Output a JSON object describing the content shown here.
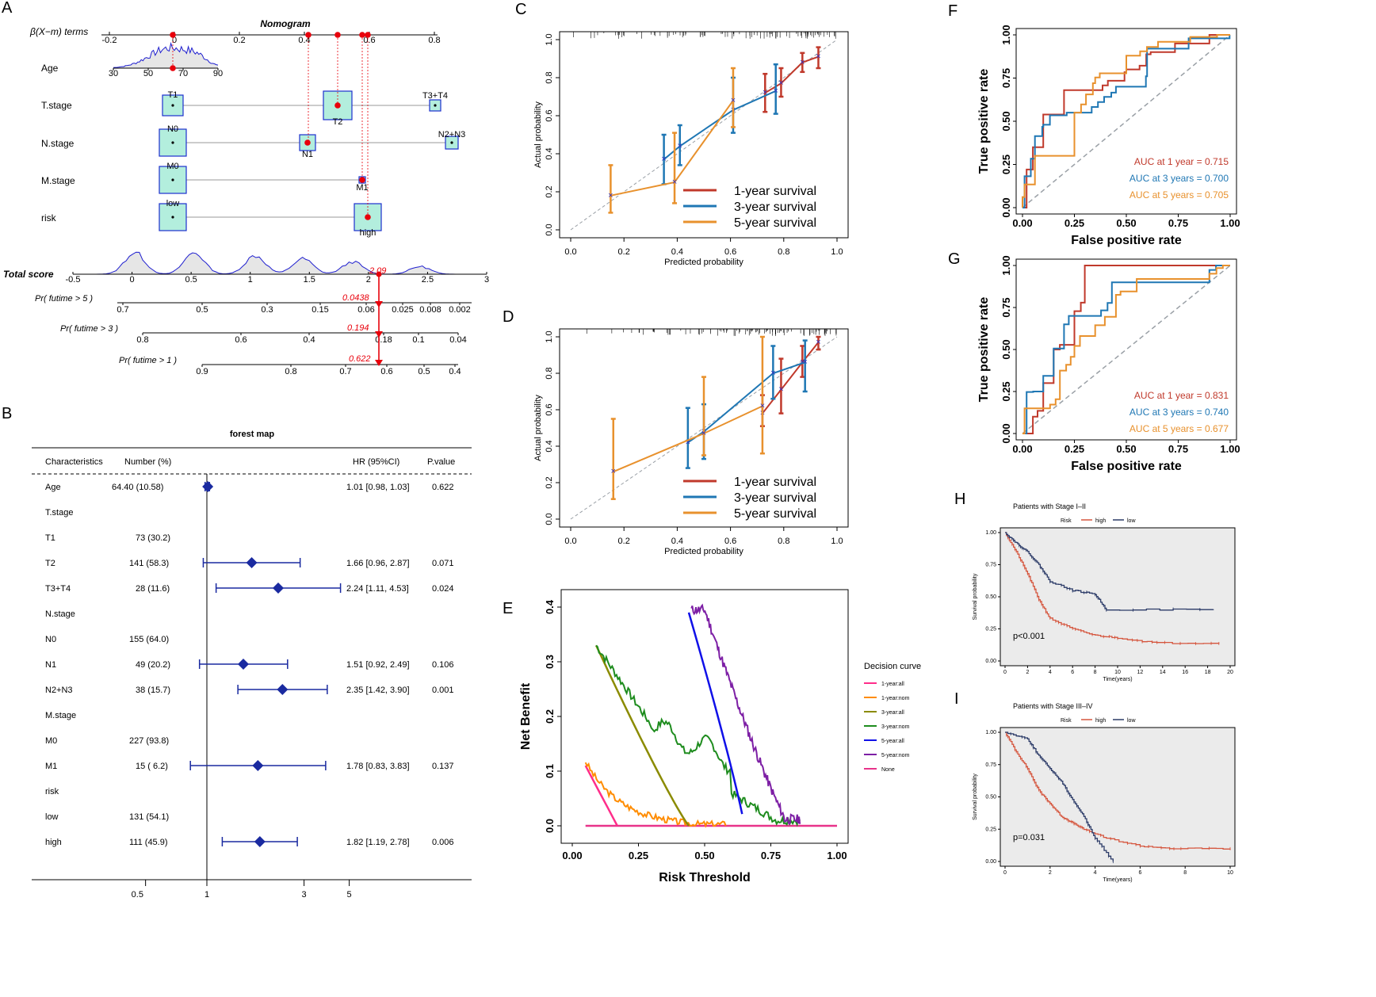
{
  "panels": {
    "A": "A",
    "B": "B",
    "C": "C",
    "D": "D",
    "E": "E",
    "F": "F",
    "G": "G",
    "H": "H",
    "I": "I"
  },
  "colors": {
    "red": "#c0392b",
    "blue": "#1f77b4",
    "orange": "#e8912d",
    "nomoRed": "#e8000b",
    "navy": "#1c2e6e",
    "forestBlue": "#1a2aa0",
    "kmRed": "#d5553d",
    "kmBlue": "#2b3a67"
  },
  "chart_data": [
    {
      "type": "table",
      "id": "nomogram",
      "title": "Nomogram",
      "rows": [
        {
          "label": "β(X−m) terms",
          "ticks": [
            "-0.2",
            "0",
            "0.2",
            "0.4",
            "0.6",
            "0.8"
          ]
        },
        {
          "label": "Age",
          "ticks": [
            "30",
            "50",
            "70",
            "90"
          ]
        },
        {
          "label": "T.stage",
          "levels": [
            "T1",
            "T2",
            "T3+T4"
          ]
        },
        {
          "label": "N.stage",
          "levels": [
            "N0",
            "N1",
            "N2+N3"
          ]
        },
        {
          "label": "M.stage",
          "levels": [
            "M0",
            "M1"
          ]
        },
        {
          "label": "risk",
          "levels": [
            "low",
            "high"
          ]
        },
        {
          "label": "Total score",
          "ticks": [
            "-0.5",
            "0",
            "0.5",
            "1",
            "1.5",
            "2",
            "2.5",
            "3"
          ],
          "value": "2.09"
        },
        {
          "label": "Pr( futime > 5 )",
          "ticks": [
            "0.7",
            "0.5",
            "0.3",
            "0.15",
            "0.06",
            "0.025",
            "0.008",
            "0.002"
          ],
          "value": "0.0438"
        },
        {
          "label": "Pr( futime > 3 )",
          "ticks": [
            "0.8",
            "0.6",
            "0.4",
            "0.18",
            "0.1",
            "0.04"
          ],
          "value": "0.194"
        },
        {
          "label": "Pr( futime > 1 )",
          "ticks": [
            "0.9",
            "0.8",
            "0.7",
            "0.6",
            "0.5",
            "0.4"
          ],
          "value": "0.622"
        }
      ]
    },
    {
      "type": "table",
      "id": "forest",
      "title": "forest map",
      "columns": [
        "Characteristics",
        "Number (%)",
        "HR (95%CI)",
        "P.value"
      ],
      "rows": [
        {
          "name": "Age",
          "num": "64.40 (10.58)",
          "hr": "1.01 [0.98, 1.03]",
          "p": "0.622",
          "est": 1.01,
          "lo": 0.98,
          "hi": 1.03
        },
        {
          "name": "T.stage",
          "num": "",
          "hr": "",
          "p": ""
        },
        {
          "name": "T1",
          "num": "73 (30.2)",
          "hr": "",
          "p": ""
        },
        {
          "name": "T2",
          "num": "141 (58.3)",
          "hr": "1.66 [0.96, 2.87]",
          "p": "0.071",
          "est": 1.66,
          "lo": 0.96,
          "hi": 2.87
        },
        {
          "name": "T3+T4",
          "num": "28 (11.6)",
          "hr": "2.24 [1.11, 4.53]",
          "p": "0.024",
          "est": 2.24,
          "lo": 1.11,
          "hi": 4.53
        },
        {
          "name": "N.stage",
          "num": "",
          "hr": "",
          "p": ""
        },
        {
          "name": "N0",
          "num": "155 (64.0)",
          "hr": "",
          "p": ""
        },
        {
          "name": "N1",
          "num": "49 (20.2)",
          "hr": "1.51 [0.92, 2.49]",
          "p": "0.106",
          "est": 1.51,
          "lo": 0.92,
          "hi": 2.49
        },
        {
          "name": "N2+N3",
          "num": "38 (15.7)",
          "hr": "2.35 [1.42, 3.90]",
          "p": "0.001",
          "est": 2.35,
          "lo": 1.42,
          "hi": 3.9
        },
        {
          "name": "M.stage",
          "num": "",
          "hr": "",
          "p": ""
        },
        {
          "name": "M0",
          "num": "227 (93.8)",
          "hr": "",
          "p": ""
        },
        {
          "name": "M1",
          "num": "15 ( 6.2)",
          "hr": "1.78 [0.83, 3.83]",
          "p": "0.137",
          "est": 1.78,
          "lo": 0.83,
          "hi": 3.83
        },
        {
          "name": "risk",
          "num": "",
          "hr": "",
          "p": ""
        },
        {
          "name": "low",
          "num": "131 (54.1)",
          "hr": "",
          "p": ""
        },
        {
          "name": "high",
          "num": "111 (45.9)",
          "hr": "1.82 [1.19, 2.78]",
          "p": "0.006",
          "est": 1.82,
          "lo": 1.19,
          "hi": 2.78
        }
      ],
      "xticks": [
        "0.5",
        "1",
        "3",
        "5"
      ]
    },
    {
      "type": "line",
      "id": "calC",
      "xlabel": "Predicted probability",
      "ylabel": "Actual probability",
      "xticks": [
        "0.0",
        "0.2",
        "0.4",
        "0.6",
        "0.8",
        "1.0"
      ],
      "yticks": [
        "0.0",
        "0.2",
        "0.4",
        "0.6",
        "0.8",
        "1.0"
      ],
      "series": [
        {
          "name": "1-year survival",
          "x": [
            0.73,
            0.79,
            0.87,
            0.93
          ],
          "y": [
            0.72,
            0.77,
            0.88,
            0.91
          ],
          "lo": [
            0.62,
            0.7,
            0.83,
            0.85
          ],
          "hi": [
            0.82,
            0.85,
            0.93,
            0.96
          ]
        },
        {
          "name": "3-year survival",
          "x": [
            0.35,
            0.41,
            0.61,
            0.77
          ],
          "y": [
            0.37,
            0.44,
            0.63,
            0.73
          ],
          "lo": [
            0.24,
            0.34,
            0.51,
            0.61
          ],
          "hi": [
            0.5,
            0.55,
            0.8,
            0.87
          ]
        },
        {
          "name": "5-year survival",
          "x": [
            0.15,
            0.39,
            0.61
          ],
          "y": [
            0.18,
            0.25,
            0.68
          ],
          "lo": [
            0.09,
            0.14,
            0.54
          ],
          "hi": [
            0.34,
            0.51,
            0.85
          ]
        }
      ]
    },
    {
      "type": "line",
      "id": "calD",
      "xlabel": "Predicted probability",
      "ylabel": "Actual probability",
      "xticks": [
        "0.0",
        "0.2",
        "0.4",
        "0.6",
        "0.8",
        "1.0"
      ],
      "yticks": [
        "0.0",
        "0.2",
        "0.4",
        "0.6",
        "0.8",
        "1.0"
      ],
      "series": [
        {
          "name": "1-year survival",
          "x": [
            0.72,
            0.79,
            0.87,
            0.93
          ],
          "y": [
            0.58,
            0.71,
            0.86,
            0.97
          ],
          "lo": [
            0.51,
            0.58,
            0.78,
            0.93
          ],
          "hi": [
            0.68,
            0.88,
            0.95,
            1.0
          ]
        },
        {
          "name": "3-year survival",
          "x": [
            0.44,
            0.5,
            0.76,
            0.88
          ],
          "y": [
            0.42,
            0.48,
            0.8,
            0.86
          ],
          "lo": [
            0.28,
            0.33,
            0.66,
            0.7
          ],
          "hi": [
            0.61,
            0.63,
            0.95,
            0.98
          ]
        },
        {
          "name": "5-year survival",
          "x": [
            0.16,
            0.5,
            0.72
          ],
          "y": [
            0.26,
            0.47,
            0.62
          ],
          "lo": [
            0.11,
            0.35,
            0.36
          ],
          "hi": [
            0.55,
            0.78,
            1.0
          ]
        }
      ]
    },
    {
      "type": "line",
      "id": "dca",
      "xlabel": "Risk Threshold",
      "ylabel": "Net Benefit",
      "legend_title": "Decision curve",
      "legend": [
        "1-year:all",
        "1-year:nom",
        "3-year:all",
        "3-year:nom",
        "5-year:all",
        "5-year:nom",
        "None"
      ],
      "xticks": [
        "0.00",
        "0.25",
        "0.50",
        "0.75",
        "1.00"
      ],
      "yticks": [
        "0.0",
        "0.1",
        "0.2",
        "0.3",
        "0.4"
      ]
    },
    {
      "type": "line",
      "id": "rocF",
      "xlabel": "False positive rate",
      "ylabel": "True positive rate",
      "xticks": [
        "0.00",
        "0.25",
        "0.50",
        "0.75",
        "1.00"
      ],
      "yticks": [
        "0.00",
        "0.25",
        "0.50",
        "0.75",
        "1.00"
      ],
      "auc": [
        "AUC at 1 year = 0.715",
        "AUC at 3 years = 0.700",
        "AUC at 5 years = 0.705"
      ]
    },
    {
      "type": "line",
      "id": "rocG",
      "xlabel": "False positive rate",
      "ylabel": "True positive rate",
      "xticks": [
        "0.00",
        "0.25",
        "0.50",
        "0.75",
        "1.00"
      ],
      "yticks": [
        "0.00",
        "0.25",
        "0.50",
        "0.75",
        "1.00"
      ],
      "auc": [
        "AUC at 1 year = 0.831",
        "AUC at 3 years = 0.740",
        "AUC at 5 years = 0.677"
      ]
    },
    {
      "type": "line",
      "id": "kmH",
      "title": "Patients with Stage I–II",
      "legend_title": "Risk",
      "legend": [
        "high",
        "low"
      ],
      "xlabel": "Time(years)",
      "ylabel": "Survival probability",
      "xticks": [
        "0",
        "2",
        "4",
        "6",
        "8",
        "10",
        "12",
        "14",
        "16",
        "18",
        "20"
      ],
      "yticks": [
        "0.00",
        "0.25",
        "0.50",
        "0.75",
        "1.00"
      ],
      "pvalue": "p<0.001"
    },
    {
      "type": "line",
      "id": "kmI",
      "title": "Patients with Stage III–IV",
      "legend_title": "Risk",
      "legend": [
        "high",
        "low"
      ],
      "xlabel": "Time(years)",
      "ylabel": "Survival probability",
      "xticks": [
        "0",
        "2",
        "4",
        "6",
        "8",
        "10"
      ],
      "yticks": [
        "0.00",
        "0.25",
        "0.50",
        "0.75",
        "1.00"
      ],
      "pvalue": "p=0.031"
    }
  ]
}
